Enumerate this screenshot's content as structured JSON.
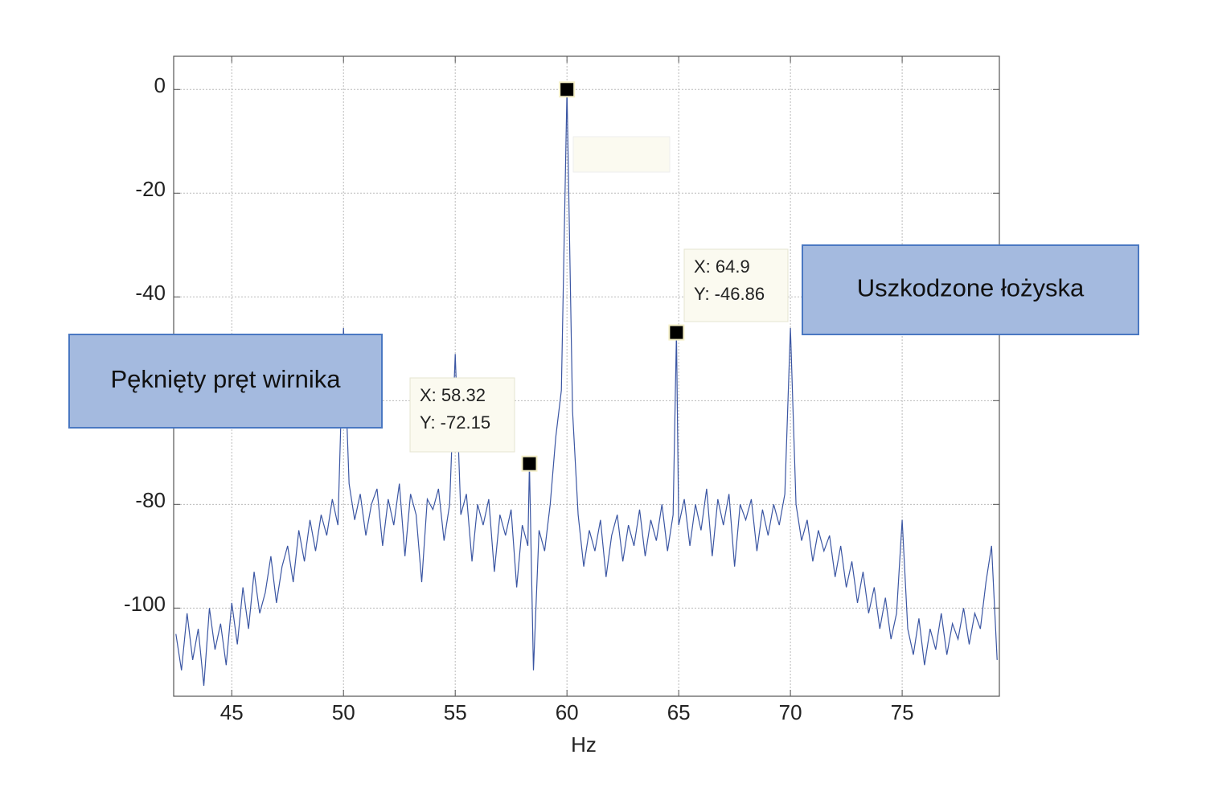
{
  "chart_data": {
    "type": "line",
    "x_label": "Hz",
    "x": [
      42.5,
      42.75,
      43,
      43.25,
      43.5,
      43.75,
      44,
      44.25,
      44.5,
      44.75,
      45,
      45.25,
      45.5,
      45.75,
      46,
      46.25,
      46.5,
      46.75,
      47,
      47.25,
      47.5,
      47.75,
      48,
      48.25,
      48.5,
      48.75,
      49,
      49.25,
      49.5,
      49.75,
      50,
      50.25,
      50.5,
      50.75,
      51,
      51.25,
      51.5,
      51.75,
      52,
      52.25,
      52.5,
      52.75,
      53,
      53.25,
      53.5,
      53.75,
      54,
      54.25,
      54.5,
      54.75,
      55,
      55.25,
      55.5,
      55.75,
      56,
      56.25,
      56.5,
      56.75,
      57,
      57.25,
      57.5,
      57.75,
      58,
      58.25,
      58.32,
      58.5,
      58.75,
      59,
      59.25,
      59.5,
      59.75,
      60,
      60.25,
      60.5,
      60.75,
      61,
      61.25,
      61.5,
      61.75,
      62,
      62.25,
      62.5,
      62.75,
      63,
      63.25,
      63.5,
      63.75,
      64,
      64.25,
      64.5,
      64.75,
      64.9,
      65,
      65.25,
      65.5,
      65.75,
      66,
      66.25,
      66.5,
      66.75,
      67,
      67.25,
      67.5,
      67.75,
      68,
      68.25,
      68.5,
      68.75,
      69,
      69.25,
      69.5,
      69.75,
      70,
      70.25,
      70.5,
      70.75,
      71,
      71.25,
      71.5,
      71.75,
      72,
      72.25,
      72.5,
      72.75,
      73,
      73.25,
      73.5,
      73.75,
      74,
      74.25,
      74.5,
      74.75,
      75,
      75.25,
      75.5,
      75.75,
      76,
      76.25,
      76.5,
      76.75,
      77,
      77.25,
      77.5,
      77.75,
      78,
      78.25,
      78.5,
      78.75,
      79,
      79.25
    ],
    "series": [
      {
        "color": "#3b56a3",
        "values": [
          -105,
          -112,
          -101,
          -110,
          -104,
          -115,
          -100,
          -108,
          -103,
          -111,
          -99,
          -107,
          -96,
          -104,
          -93,
          -101,
          -97,
          -90,
          -99,
          -92,
          -88,
          -95,
          -85,
          -91,
          -83,
          -89,
          -82,
          -86,
          -79,
          -84,
          -46,
          -76,
          -83,
          -78,
          -86,
          -80,
          -77,
          -88,
          -79,
          -84,
          -76,
          -90,
          -78,
          -82,
          -95,
          -79,
          -81,
          -77,
          -87,
          -80,
          -51,
          -82,
          -78,
          -91,
          -80,
          -84,
          -79,
          -93,
          -82,
          -86,
          -81,
          -96,
          -84,
          -88,
          -72.15,
          -112,
          -85,
          -89,
          -80,
          -67,
          -58,
          0,
          -62,
          -82,
          -92,
          -85,
          -89,
          -83,
          -94,
          -86,
          -82,
          -91,
          -84,
          -88,
          -81,
          -90,
          -83,
          -87,
          -80,
          -89,
          -82,
          -46.86,
          -84,
          -79,
          -88,
          -80,
          -85,
          -77,
          -90,
          -79,
          -84,
          -78,
          -92,
          -80,
          -83,
          -79,
          -89,
          -81,
          -86,
          -80,
          -84,
          -78,
          -46,
          -80,
          -87,
          -83,
          -91,
          -85,
          -89,
          -86,
          -94,
          -88,
          -96,
          -91,
          -99,
          -93,
          -101,
          -96,
          -104,
          -98,
          -106,
          -101,
          -83,
          -104,
          -109,
          -102,
          -111,
          -104,
          -108,
          -101,
          -109,
          -103,
          -106,
          -100,
          -107,
          -101,
          -104,
          -95,
          -88,
          -110
        ]
      }
    ],
    "xlim": [
      42.4,
      79.35
    ],
    "xticks": [
      45,
      50,
      55,
      60,
      65,
      70,
      75
    ],
    "ylim": [
      -117,
      6.4
    ],
    "yticks": [
      0,
      -20,
      -40,
      -60,
      -80,
      -100
    ],
    "grid": true,
    "datatips": [
      {
        "x": 60,
        "y": 0
      },
      {
        "x": 58.32,
        "y": -72.15,
        "x_label": "X: 58.32",
        "y_label": "Y: -72.15"
      },
      {
        "x": 64.9,
        "y": -46.86,
        "x_label": "X: 64.9",
        "y_label": "Y: -46.86"
      }
    ],
    "annotations": [
      "Pęknięty pręt wirnika",
      "Uszkodzone łożyska"
    ]
  }
}
